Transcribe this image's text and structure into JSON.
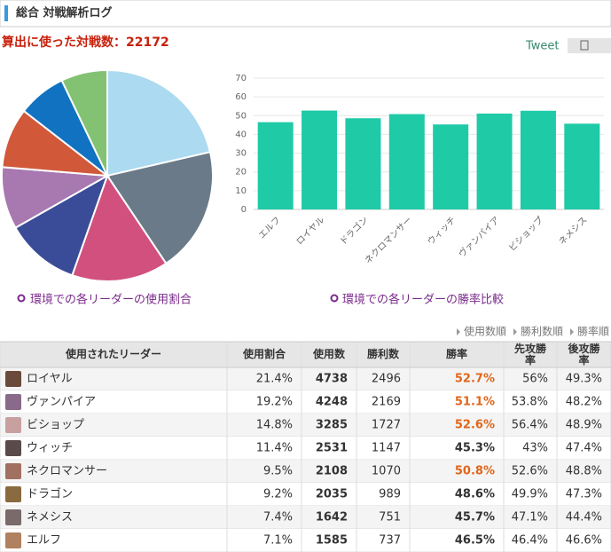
{
  "header": {
    "title": "総合 対戦解析ログ"
  },
  "total": {
    "label": "算出に使った対戦数：",
    "value": 22172
  },
  "tweet": "Tweet",
  "chart_data": [
    {
      "type": "pie",
      "caption": "環境での各リーダーの使用割合",
      "values": [
        21.4,
        19.2,
        14.8,
        11.4,
        9.5,
        9.2,
        7.4,
        7.1
      ],
      "colors": [
        "#acdaf0",
        "#6b7a88",
        "#d2507e",
        "#3a4c98",
        "#a878b0",
        "#d2583a",
        "#1072c0",
        "#82c272"
      ]
    },
    {
      "type": "bar",
      "caption": "環境での各リーダーの勝率比較",
      "categories": [
        "エルフ",
        "ロイヤル",
        "ドラゴン",
        "ネクロマンサー",
        "ウィッチ",
        "ヴァンパイア",
        "ビショップ",
        "ネメシス"
      ],
      "values": [
        46.5,
        52.7,
        48.6,
        50.8,
        45.3,
        51.1,
        52.6,
        45.7
      ],
      "color": "#1fcaa7",
      "ylim": [
        0,
        70
      ],
      "yticks": [
        0,
        10,
        20,
        30,
        40,
        50,
        60,
        70
      ],
      "grid": true
    }
  ],
  "sort_links": [
    "使用数順",
    "勝利数順",
    "勝率順"
  ],
  "table": {
    "header": [
      "使用されたリーダー",
      "使用割合",
      "使用数",
      "勝利数",
      "勝率",
      "先攻勝率",
      "後攻勝率"
    ],
    "rows": [
      {
        "leader": "ロイヤル",
        "share": "21.4%",
        "uses": "4738",
        "wins": "2496",
        "rate": "52.7%",
        "rate_first": "56%",
        "rate_second": "49.3%",
        "highlight": true
      },
      {
        "leader": "ヴァンパイア",
        "share": "19.2%",
        "uses": "4248",
        "wins": "2169",
        "rate": "51.1%",
        "rate_first": "53.8%",
        "rate_second": "48.2%",
        "highlight": true
      },
      {
        "leader": "ビショップ",
        "share": "14.8%",
        "uses": "3285",
        "wins": "1727",
        "rate": "52.6%",
        "rate_first": "56.4%",
        "rate_second": "48.9%",
        "highlight": true
      },
      {
        "leader": "ウィッチ",
        "share": "11.4%",
        "uses": "2531",
        "wins": "1147",
        "rate": "45.3%",
        "rate_first": "43%",
        "rate_second": "47.4%",
        "highlight": false
      },
      {
        "leader": "ネクロマンサー",
        "share": "9.5%",
        "uses": "2108",
        "wins": "1070",
        "rate": "50.8%",
        "rate_first": "52.6%",
        "rate_second": "48.8%",
        "highlight": true
      },
      {
        "leader": "ドラゴン",
        "share": "9.2%",
        "uses": "2035",
        "wins": "989",
        "rate": "48.6%",
        "rate_first": "49.9%",
        "rate_second": "47.3%",
        "highlight": false
      },
      {
        "leader": "ネメシス",
        "share": "7.4%",
        "uses": "1642",
        "wins": "751",
        "rate": "45.7%",
        "rate_first": "47.1%",
        "rate_second": "44.4%",
        "highlight": false
      },
      {
        "leader": "エルフ",
        "share": "7.1%",
        "uses": "1585",
        "wins": "737",
        "rate": "46.5%",
        "rate_first": "46.4%",
        "rate_second": "46.6%",
        "highlight": false
      }
    ]
  }
}
